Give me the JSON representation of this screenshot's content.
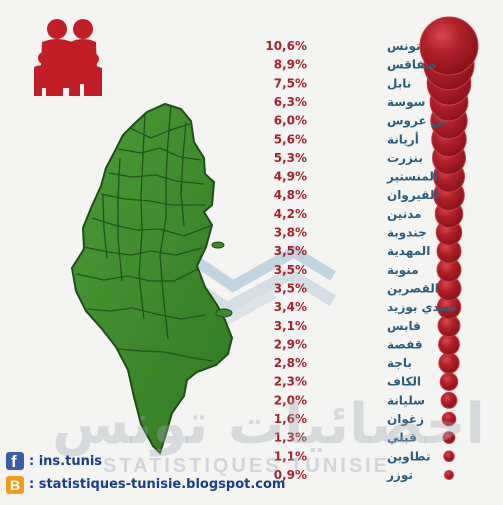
{
  "chart_data": {
    "type": "bubble",
    "title": "",
    "categories": [
      "تونس",
      "صفاقس",
      "نابل",
      "سوسة",
      "بن عروس",
      "أريانة",
      "بنزرت",
      "المنستير",
      "القيروان",
      "مدنين",
      "جندوبة",
      "المهدية",
      "منوبة",
      "القصرين",
      "سيدي بوزيد",
      "قابس",
      "قفصة",
      "باجة",
      "الكاف",
      "سليانة",
      "زغوان",
      "قبلي",
      "تطاوين",
      "توزر"
    ],
    "values": [
      10.6,
      8.9,
      7.5,
      6.3,
      6.0,
      5.6,
      5.3,
      4.9,
      4.8,
      4.2,
      3.8,
      3.5,
      3.5,
      3.5,
      3.4,
      3.1,
      2.9,
      2.8,
      2.3,
      2.0,
      1.6,
      1.3,
      1.1,
      0.9
    ],
    "value_labels": [
      "10,6%",
      "8,9%",
      "7,5%",
      "6,3%",
      "6,0%",
      "5,6%",
      "5,3%",
      "4,9%",
      "4,8%",
      "4,2%",
      "3,8%",
      "3,5%",
      "3,5%",
      "3,5%",
      "3,4%",
      "3,1%",
      "2,9%",
      "2,8%",
      "2,3%",
      "2,0%",
      "1,6%",
      "1,3%",
      "1,1%",
      "0,9%"
    ],
    "colors": {
      "bubble": "#a91f27",
      "bubble_edge": "#c73c43",
      "percent_text": "#a5242b",
      "governorate_text": "#2b5d7c",
      "map": "#3f8a2e",
      "map_border": "#1f4e18"
    }
  },
  "footer": {
    "facebook_icon": "facebook-icon",
    "facebook_text": ": ins.tunis",
    "blog_icon": "blogger-icon",
    "blog_text": ": statistiques-tunisie.blogspot.com"
  },
  "watermark": {
    "arabic": "احصائيات تونس",
    "latin": "STATISTIQUES TUNISIE"
  },
  "icons": {
    "family": "family-icon",
    "map": "tunisia-map"
  }
}
